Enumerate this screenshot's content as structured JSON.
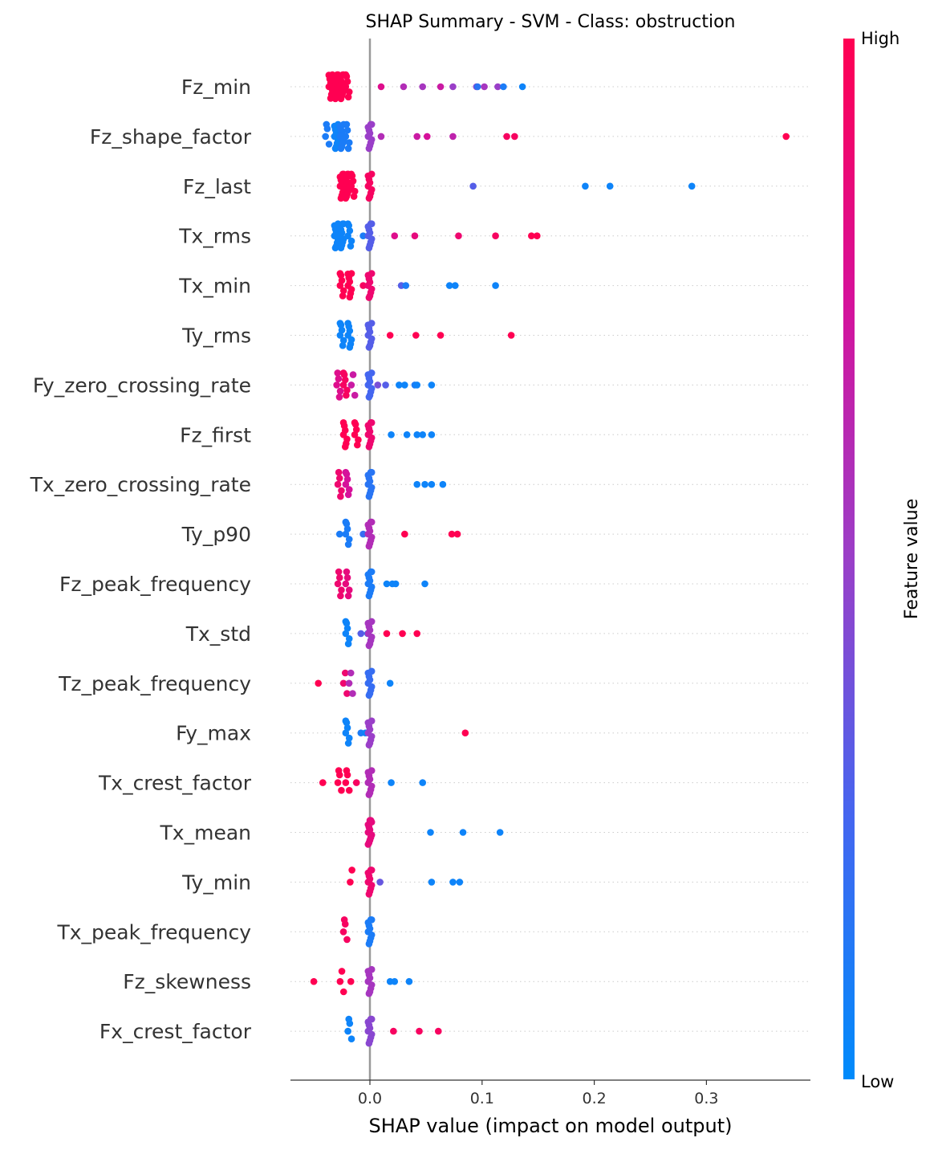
{
  "chart_data": {
    "type": "scatter",
    "title": "SHAP Summary - SVM - Class: obstruction",
    "xlabel": "SHAP value (impact on model output)",
    "xlim": [
      -0.07,
      0.39
    ],
    "xticks": [
      "0.0",
      "0.1",
      "0.2",
      "0.3"
    ],
    "xtick_values": [
      0.0,
      0.1,
      0.2,
      0.3
    ],
    "colorbar": {
      "label": "Feature value",
      "high_label": "High",
      "low_label": "Low",
      "high_color": "#ff0052",
      "low_color": "#008bfb"
    },
    "grid": "dotted horizontal row lines",
    "features": [
      {
        "name": "Fz_min",
        "points": [
          {
            "x": -0.035,
            "v": 1,
            "n": 8
          },
          {
            "x": -0.03,
            "v": 1,
            "n": 10
          },
          {
            "x": -0.025,
            "v": 1,
            "n": 10
          },
          {
            "x": -0.02,
            "v": 1,
            "n": 6
          },
          {
            "x": 0.01,
            "v": 0.8
          },
          {
            "x": 0.03,
            "v": 0.6
          },
          {
            "x": 0.047,
            "v": 0.55
          },
          {
            "x": 0.063,
            "v": 0.7
          },
          {
            "x": 0.074,
            "v": 0.5
          },
          {
            "x": 0.095,
            "v": 0.45
          },
          {
            "x": 0.096,
            "v": 0.15
          },
          {
            "x": 0.102,
            "v": 0.55
          },
          {
            "x": 0.114,
            "v": 0.5
          },
          {
            "x": 0.119,
            "v": 0.1
          },
          {
            "x": 0.136,
            "v": 0.05
          }
        ]
      },
      {
        "name": "Fz_shape_factor",
        "points": [
          {
            "x": -0.038,
            "v": 0.1,
            "n": 4
          },
          {
            "x": -0.03,
            "v": 0.05,
            "n": 9
          },
          {
            "x": -0.025,
            "v": 0.1,
            "n": 9
          },
          {
            "x": -0.02,
            "v": 0.1,
            "n": 5
          },
          {
            "x": 0.0,
            "v": 0.5,
            "n": 10
          },
          {
            "x": 0.01,
            "v": 0.6
          },
          {
            "x": 0.042,
            "v": 0.7
          },
          {
            "x": 0.051,
            "v": 0.75
          },
          {
            "x": 0.074,
            "v": 0.65
          },
          {
            "x": 0.122,
            "v": 0.95
          },
          {
            "x": 0.129,
            "v": 0.95
          },
          {
            "x": 0.371,
            "v": 1
          }
        ]
      },
      {
        "name": "Fz_last",
        "points": [
          {
            "x": -0.025,
            "v": 1,
            "n": 10
          },
          {
            "x": -0.02,
            "v": 1,
            "n": 12
          },
          {
            "x": -0.015,
            "v": 1,
            "n": 6
          },
          {
            "x": 0.0,
            "v": 0.95,
            "n": 9
          },
          {
            "x": 0.092,
            "v": 0.3
          },
          {
            "x": 0.192,
            "v": 0.05
          },
          {
            "x": 0.214,
            "v": 0.05
          },
          {
            "x": 0.287,
            "v": 0.05
          }
        ]
      },
      {
        "name": "Tx_rms",
        "points": [
          {
            "x": -0.03,
            "v": 0.05,
            "n": 9
          },
          {
            "x": -0.025,
            "v": 0.05,
            "n": 10
          },
          {
            "x": -0.018,
            "v": 0.05,
            "n": 6
          },
          {
            "x": -0.006,
            "v": 0.1
          },
          {
            "x": 0.0,
            "v": 0.3,
            "n": 10
          },
          {
            "x": 0.022,
            "v": 0.8
          },
          {
            "x": 0.04,
            "v": 0.85
          },
          {
            "x": 0.079,
            "v": 0.9
          },
          {
            "x": 0.112,
            "v": 0.95
          },
          {
            "x": 0.144,
            "v": 1
          },
          {
            "x": 0.149,
            "v": 1
          }
        ]
      },
      {
        "name": "Tx_min",
        "points": [
          {
            "x": -0.025,
            "v": 1,
            "n": 6
          },
          {
            "x": -0.018,
            "v": 1,
            "n": 8
          },
          {
            "x": -0.006,
            "v": 0.95
          },
          {
            "x": 0.0,
            "v": 0.9,
            "n": 9
          },
          {
            "x": 0.028,
            "v": 0.3
          },
          {
            "x": 0.032,
            "v": 0.1
          },
          {
            "x": 0.071,
            "v": 0.05
          },
          {
            "x": 0.076,
            "v": 0.05
          },
          {
            "x": 0.112,
            "v": 0.05
          }
        ]
      },
      {
        "name": "Ty_rms",
        "points": [
          {
            "x": -0.025,
            "v": 0.05,
            "n": 6
          },
          {
            "x": -0.018,
            "v": 0.05,
            "n": 7
          },
          {
            "x": 0.0,
            "v": 0.3,
            "n": 9
          },
          {
            "x": 0.018,
            "v": 1
          },
          {
            "x": 0.041,
            "v": 1
          },
          {
            "x": 0.063,
            "v": 1
          },
          {
            "x": 0.126,
            "v": 1
          }
        ]
      },
      {
        "name": "Fy_zero_crossing_rate",
        "points": [
          {
            "x": -0.028,
            "v": 0.8,
            "n": 5
          },
          {
            "x": -0.022,
            "v": 0.95,
            "n": 6
          },
          {
            "x": -0.015,
            "v": 0.7,
            "n": 3
          },
          {
            "x": 0.0,
            "v": 0.25,
            "n": 9
          },
          {
            "x": 0.007,
            "v": 0.4
          },
          {
            "x": 0.014,
            "v": 0.3
          },
          {
            "x": 0.026,
            "v": 0.05
          },
          {
            "x": 0.031,
            "v": 0.05
          },
          {
            "x": 0.04,
            "v": 0.1
          },
          {
            "x": 0.042,
            "v": 0.05
          },
          {
            "x": 0.055,
            "v": 0.05
          }
        ]
      },
      {
        "name": "Fz_first",
        "points": [
          {
            "x": -0.022,
            "v": 1,
            "n": 7
          },
          {
            "x": -0.012,
            "v": 1,
            "n": 6
          },
          {
            "x": 0.0,
            "v": 0.9,
            "n": 10
          },
          {
            "x": 0.019,
            "v": 0.05
          },
          {
            "x": 0.033,
            "v": 0.05
          },
          {
            "x": 0.042,
            "v": 0.05
          },
          {
            "x": 0.047,
            "v": 0.05
          },
          {
            "x": 0.055,
            "v": 0.05
          }
        ]
      },
      {
        "name": "Tx_zero_crossing_rate",
        "points": [
          {
            "x": -0.027,
            "v": 0.9,
            "n": 5
          },
          {
            "x": -0.02,
            "v": 0.75,
            "n": 6
          },
          {
            "x": 0.0,
            "v": 0.15,
            "n": 10
          },
          {
            "x": 0.042,
            "v": 0.05
          },
          {
            "x": 0.049,
            "v": 0.05
          },
          {
            "x": 0.055,
            "v": 0.05
          },
          {
            "x": 0.065,
            "v": 0.05
          }
        ]
      },
      {
        "name": "Ty_p90",
        "points": [
          {
            "x": -0.027,
            "v": 0.1
          },
          {
            "x": -0.02,
            "v": 0.1,
            "n": 6
          },
          {
            "x": -0.006,
            "v": 0.2
          },
          {
            "x": 0.0,
            "v": 0.6,
            "n": 10
          },
          {
            "x": 0.031,
            "v": 1
          },
          {
            "x": 0.073,
            "v": 1
          },
          {
            "x": 0.078,
            "v": 1
          }
        ]
      },
      {
        "name": "Fz_peak_frequency",
        "points": [
          {
            "x": -0.027,
            "v": 0.9,
            "n": 5
          },
          {
            "x": -0.02,
            "v": 0.85,
            "n": 5
          },
          {
            "x": 0.0,
            "v": 0.1,
            "n": 10
          },
          {
            "x": 0.015,
            "v": 0.05
          },
          {
            "x": 0.02,
            "v": 0.05
          },
          {
            "x": 0.023,
            "v": 0.05
          },
          {
            "x": 0.049,
            "v": 0.05
          }
        ]
      },
      {
        "name": "Tx_std",
        "points": [
          {
            "x": -0.02,
            "v": 0.05,
            "n": 6
          },
          {
            "x": -0.008,
            "v": 0.3
          },
          {
            "x": -0.002,
            "v": 0.05
          },
          {
            "x": 0.0,
            "v": 0.55,
            "n": 9
          },
          {
            "x": 0.015,
            "v": 1
          },
          {
            "x": 0.029,
            "v": 1
          },
          {
            "x": 0.042,
            "v": 1
          }
        ]
      },
      {
        "name": "Tz_peak_frequency",
        "points": [
          {
            "x": -0.046,
            "v": 1
          },
          {
            "x": -0.022,
            "v": 0.9,
            "n": 3
          },
          {
            "x": -0.017,
            "v": 0.6,
            "n": 3
          },
          {
            "x": 0.0,
            "v": 0.2,
            "n": 9
          },
          {
            "x": 0.018,
            "v": 0.05
          }
        ]
      },
      {
        "name": "Fy_max",
        "points": [
          {
            "x": -0.02,
            "v": 0.05,
            "n": 6
          },
          {
            "x": -0.008,
            "v": 0.1
          },
          {
            "x": -0.004,
            "v": 0.05
          },
          {
            "x": 0.0,
            "v": 0.5,
            "n": 9
          },
          {
            "x": 0.085,
            "v": 1
          }
        ]
      },
      {
        "name": "Tx_crest_factor",
        "points": [
          {
            "x": -0.042,
            "v": 1
          },
          {
            "x": -0.027,
            "v": 1,
            "n": 4
          },
          {
            "x": -0.02,
            "v": 1,
            "n": 4
          },
          {
            "x": -0.012,
            "v": 0.95
          },
          {
            "x": 0.0,
            "v": 0.6,
            "n": 9
          },
          {
            "x": 0.019,
            "v": 0.05
          },
          {
            "x": 0.047,
            "v": 0.05
          }
        ]
      },
      {
        "name": "Tx_mean",
        "points": [
          {
            "x": 0.0,
            "v": 0.85,
            "n": 12
          },
          {
            "x": 0.054,
            "v": 0.05
          },
          {
            "x": 0.083,
            "v": 0.05
          },
          {
            "x": 0.116,
            "v": 0.05
          }
        ]
      },
      {
        "name": "Ty_min",
        "points": [
          {
            "x": -0.016,
            "v": 1,
            "n": 2
          },
          {
            "x": 0.0,
            "v": 0.9,
            "n": 10
          },
          {
            "x": 0.009,
            "v": 0.35
          },
          {
            "x": 0.055,
            "v": 0.05
          },
          {
            "x": 0.074,
            "v": 0.05
          },
          {
            "x": 0.08,
            "v": 0.05
          }
        ]
      },
      {
        "name": "Tx_peak_frequency",
        "points": [
          {
            "x": -0.022,
            "v": 0.95,
            "n": 4
          },
          {
            "x": 0.0,
            "v": 0.1,
            "n": 10
          }
        ]
      },
      {
        "name": "Fz_skewness",
        "points": [
          {
            "x": -0.05,
            "v": 1
          },
          {
            "x": -0.025,
            "v": 1,
            "n": 3
          },
          {
            "x": -0.017,
            "v": 1
          },
          {
            "x": 0.0,
            "v": 0.55,
            "n": 9
          },
          {
            "x": 0.018,
            "v": 0.05
          },
          {
            "x": 0.022,
            "v": 0.05
          },
          {
            "x": 0.035,
            "v": 0.05
          }
        ]
      },
      {
        "name": "Fx_crest_factor",
        "points": [
          {
            "x": -0.018,
            "v": 0.05,
            "n": 4
          },
          {
            "x": 0.0,
            "v": 0.45,
            "n": 10
          },
          {
            "x": 0.021,
            "v": 0.95
          },
          {
            "x": 0.044,
            "v": 0.95
          },
          {
            "x": 0.061,
            "v": 0.95
          }
        ]
      }
    ]
  }
}
